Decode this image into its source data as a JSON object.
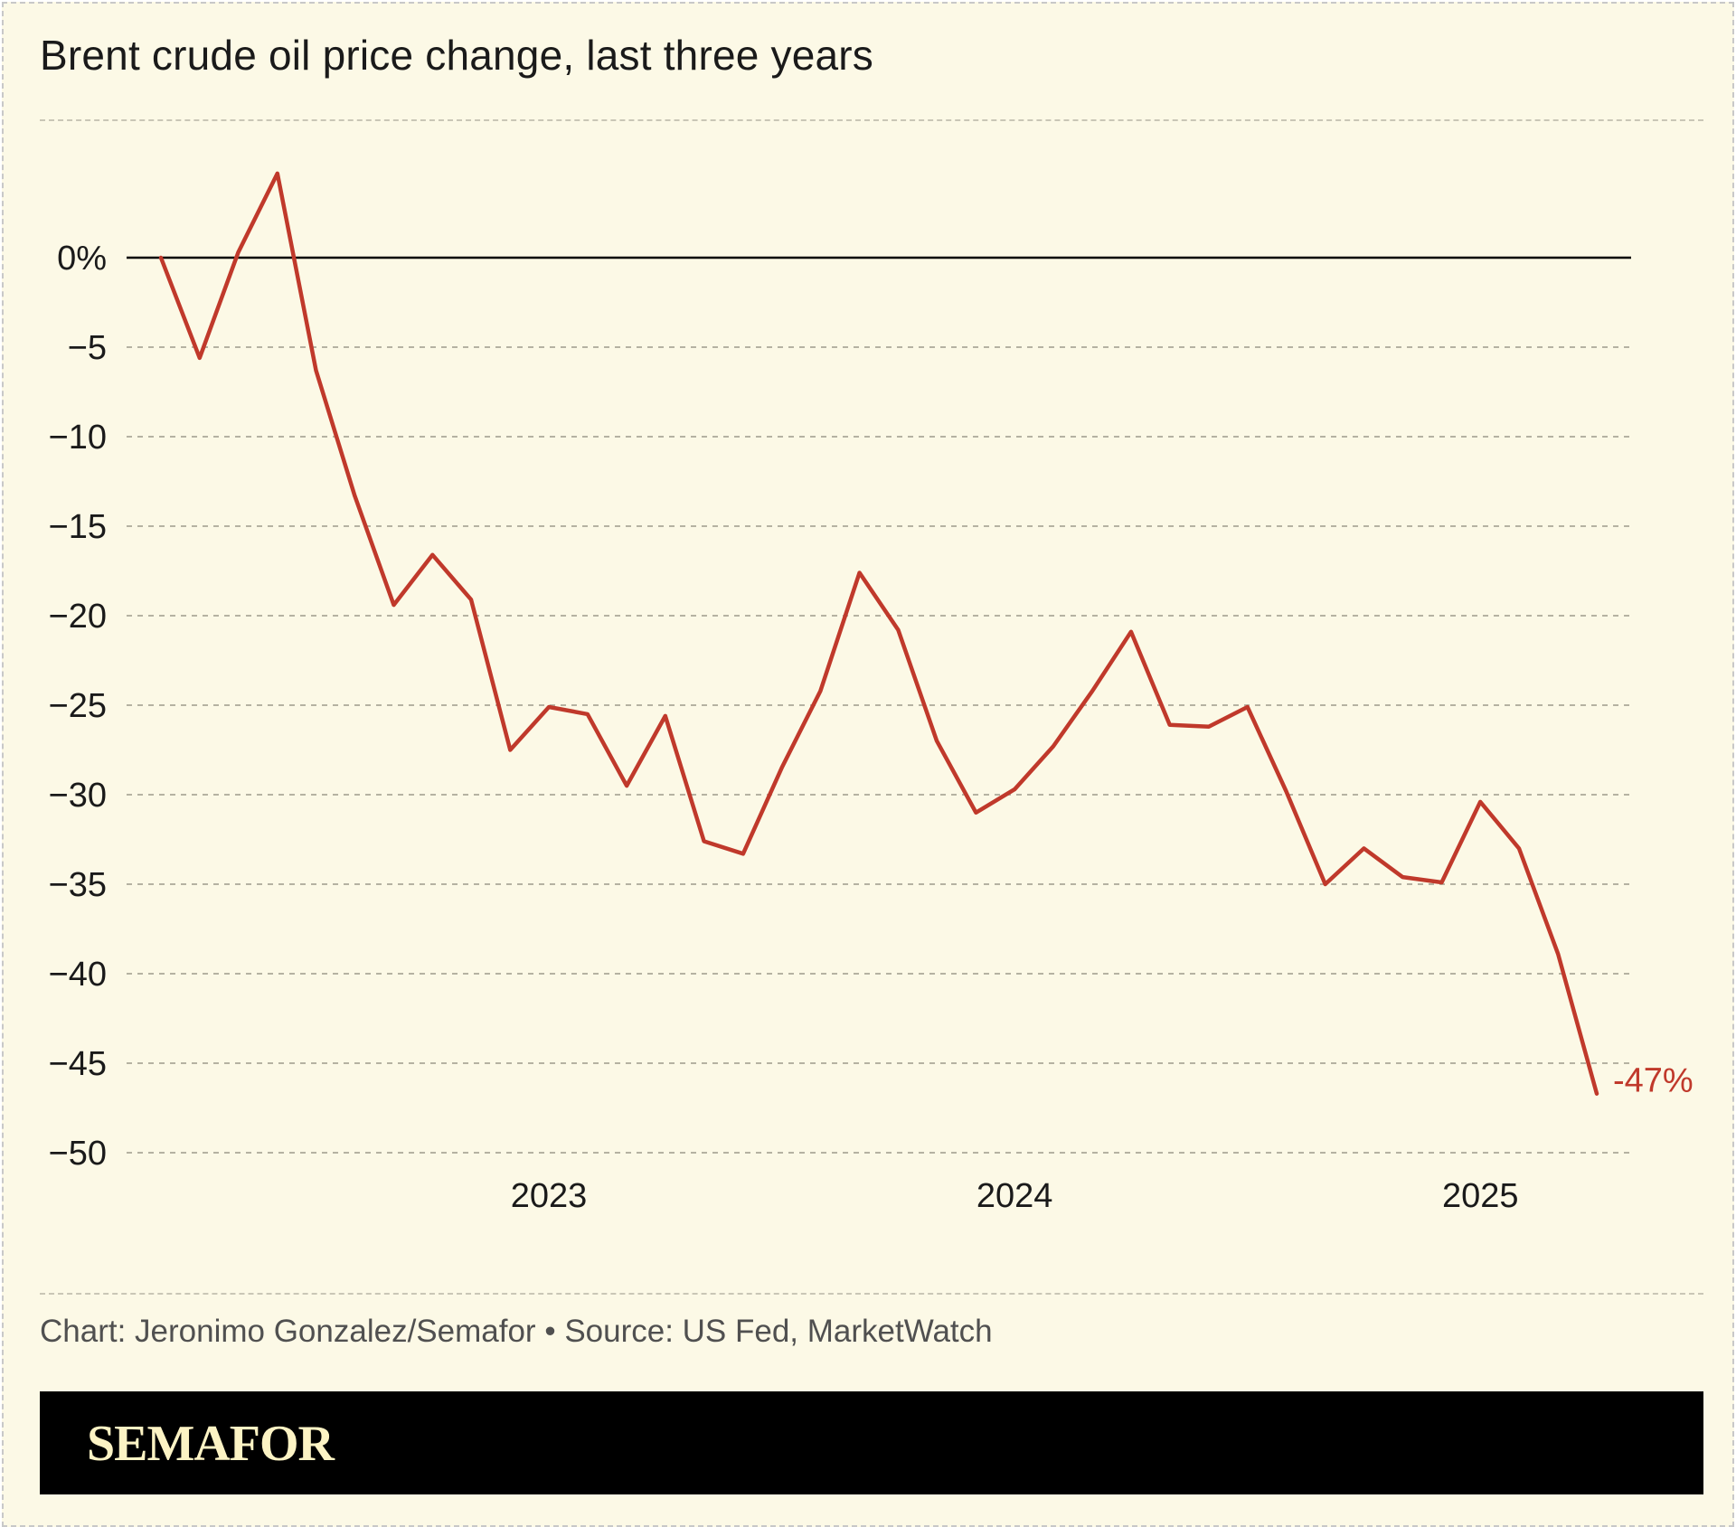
{
  "title": "Brent crude oil price change, last three years",
  "credit": {
    "chart_label": "Chart: Jeronimo Gonzalez/Semafor",
    "separator": "•",
    "source_label": "Source: US Fed, MarketWatch"
  },
  "brand": {
    "logo_text": "SEMAFOR",
    "logo_color": "#fcf3c4"
  },
  "colors": {
    "line": "#c0392b",
    "background": "#fcf9e6",
    "zero_line": "#000000",
    "grid": "#b5b2a2"
  },
  "chart_data": {
    "type": "line",
    "title": "Brent crude oil price change, last three years",
    "xlabel": "",
    "ylabel": "",
    "x_ticks": [
      {
        "x": 2023.0,
        "label": "2023"
      },
      {
        "x": 2024.0,
        "label": "2024"
      },
      {
        "x": 2025.0,
        "label": "2025"
      }
    ],
    "xlim": [
      2022.08,
      2025.4
    ],
    "y_ticks": [
      {
        "y": 0,
        "label": "0%"
      },
      {
        "y": -5,
        "label": "−5"
      },
      {
        "y": -10,
        "label": "−10"
      },
      {
        "y": -15,
        "label": "−15"
      },
      {
        "y": -20,
        "label": "−20"
      },
      {
        "y": -25,
        "label": "−25"
      },
      {
        "y": -30,
        "label": "−30"
      },
      {
        "y": -35,
        "label": "−35"
      },
      {
        "y": -40,
        "label": "−40"
      },
      {
        "y": -45,
        "label": "−45"
      },
      {
        "y": -50,
        "label": "−50"
      }
    ],
    "ylim": [
      -50,
      4.7
    ],
    "grid": true,
    "zero_line": true,
    "series": [
      {
        "end_label": "-47%",
        "x": [
          2022.167,
          2022.25,
          2022.333,
          2022.417,
          2022.5,
          2022.583,
          2022.667,
          2022.75,
          2022.833,
          2022.917,
          2023.0,
          2023.083,
          2023.167,
          2023.25,
          2023.333,
          2023.417,
          2023.5,
          2023.583,
          2023.667,
          2023.75,
          2023.833,
          2023.917,
          2024.0,
          2024.083,
          2024.167,
          2024.25,
          2024.333,
          2024.417,
          2024.5,
          2024.583,
          2024.667,
          2024.75,
          2024.833,
          2024.917,
          2025.0,
          2025.083,
          2025.167,
          2025.25
        ],
        "y": [
          0.0,
          -5.6,
          0.3,
          4.7,
          -6.3,
          -13.3,
          -19.4,
          -16.6,
          -19.1,
          -27.5,
          -25.1,
          -25.5,
          -29.5,
          -25.6,
          -32.6,
          -33.3,
          -28.5,
          -24.2,
          -17.6,
          -20.8,
          -27.0,
          -31.0,
          -29.7,
          -27.3,
          -24.2,
          -20.9,
          -26.1,
          -26.2,
          -25.1,
          -29.8,
          -35.0,
          -33.0,
          -34.6,
          -34.9,
          -30.4,
          -33.0,
          -38.9,
          -46.7
        ]
      }
    ]
  }
}
